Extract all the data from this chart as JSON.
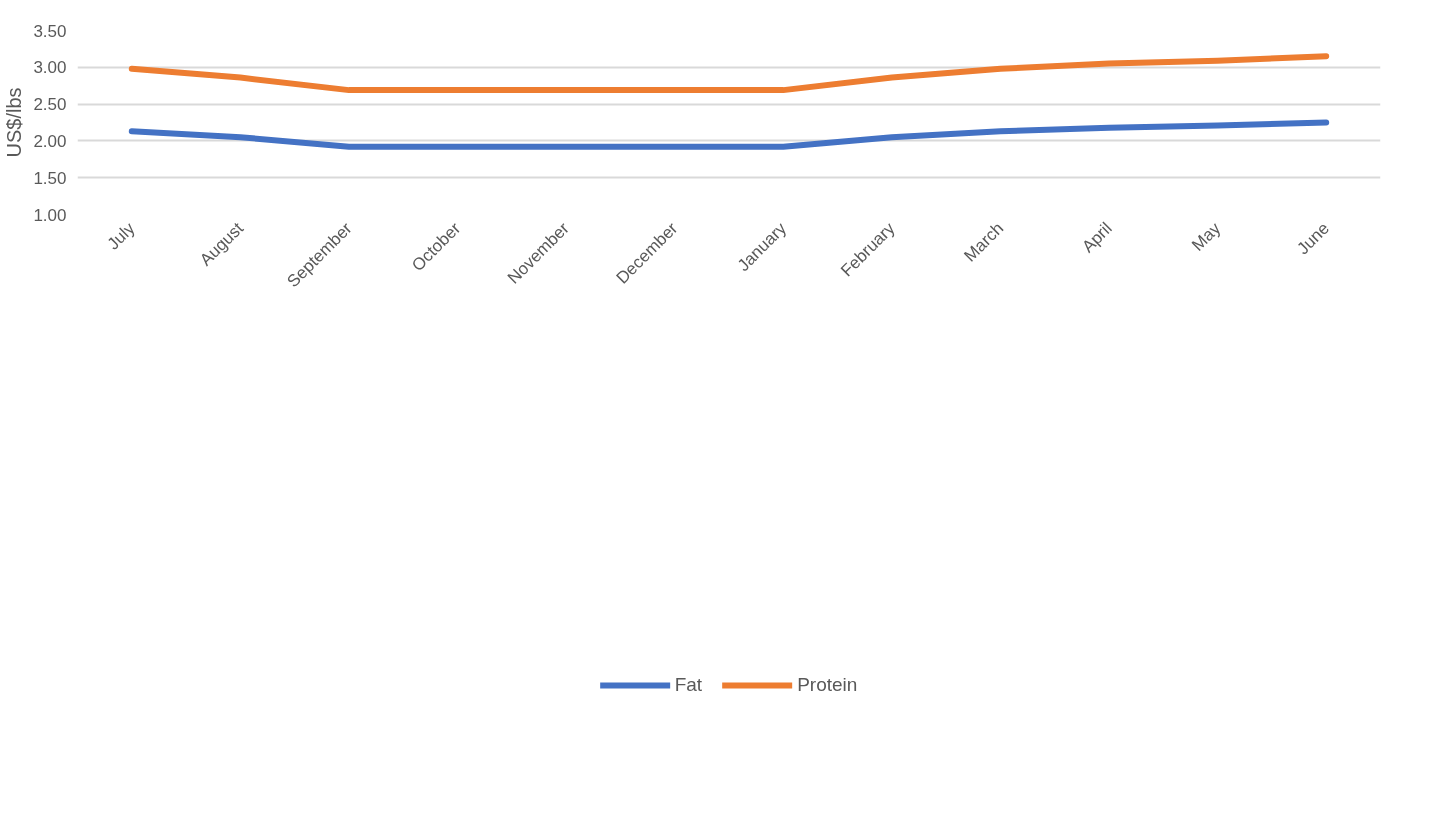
{
  "chart_data": {
    "type": "line",
    "ylabel": "US$/lbs",
    "categories": [
      "July",
      "August",
      "September",
      "October",
      "November",
      "December",
      "January",
      "February",
      "March",
      "April",
      "May",
      "June"
    ],
    "series": [
      {
        "name": "Fat",
        "color": "#4472c4",
        "values": [
          2.13,
          2.05,
          1.92,
          1.92,
          1.92,
          1.92,
          1.92,
          2.05,
          2.13,
          2.18,
          2.21,
          2.25
        ]
      },
      {
        "name": "Protein",
        "color": "#ed7d31",
        "values": [
          2.98,
          2.86,
          2.69,
          2.69,
          2.69,
          2.69,
          2.69,
          2.86,
          2.98,
          3.05,
          3.09,
          3.15
        ]
      }
    ],
    "ylim": [
      1.0,
      3.5
    ],
    "yticks": [
      {
        "value": 1.0,
        "label": "1.00"
      },
      {
        "value": 1.5,
        "label": "1.50"
      },
      {
        "value": 2.0,
        "label": "2.00"
      },
      {
        "value": 2.5,
        "label": "2.50"
      },
      {
        "value": 3.0,
        "label": "3.00"
      },
      {
        "value": 3.5,
        "label": "3.50"
      }
    ],
    "grid": "y",
    "legend": "bottom",
    "marker": "none",
    "line_style": "solid"
  }
}
